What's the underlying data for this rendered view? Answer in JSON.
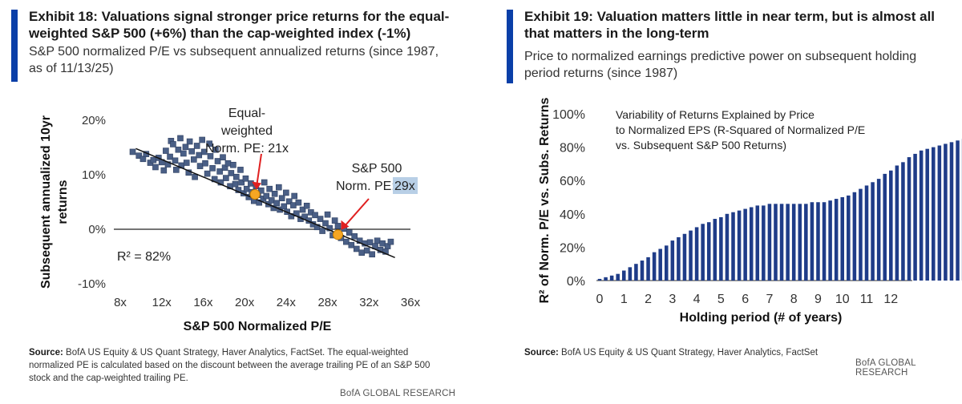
{
  "exhibit18": {
    "title": "Exhibit 18: Valuations signal stronger price returns for the equal-weighted S&P 500 (+6%) than the cap-weighted index (-1%)",
    "subtitle": "S&P 500 normalized P/E vs subsequent annualized returns (since 1987, as of 11/13/25)",
    "source_label": "Source:",
    "source_text": "BofA US Equity & US Quant Strategy, Haver Analytics, FactSet. The equal-weighted normalized PE is calculated based on the discount between the average trailing PE of an S&P 500 stock and the cap-weighted trailing PE.",
    "brand": "BofA GLOBAL RESEARCH",
    "colors": {
      "accent": "#0a3fa8",
      "marker": "#4a5f86",
      "marker_edge": "#2e3f60",
      "highlight": "#f5a623",
      "arrow": "#e02020",
      "label_highlight": "#b8cfe6"
    }
  },
  "exhibit19": {
    "title": "Exhibit 19: Valuation matters little in near term, but is almost all that matters in the long-term",
    "subtitle": "Price to normalized earnings predictive power on subsequent holding period returns (since 1987)",
    "source_label": "Source:",
    "source_text": "BofA US Equity & US Quant Strategy, Haver Analytics, FactSet",
    "brand": "BofA GLOBAL RESEARCH",
    "colors": {
      "accent": "#0a3fa8",
      "bar": "#1f3c88"
    }
  },
  "chart_data": [
    {
      "type": "scatter",
      "xlabel": "S&P 500 Normalized P/E",
      "ylabel": "Subsequent annualized 10yr returns",
      "xlim": [
        8,
        36
      ],
      "ylim": [
        -10,
        20
      ],
      "xticks": [
        8,
        12,
        16,
        20,
        24,
        28,
        32,
        36
      ],
      "xtick_labels": [
        "8x",
        "12x",
        "16x",
        "20x",
        "24x",
        "28x",
        "32x",
        "36x"
      ],
      "yticks": [
        -10,
        0,
        10,
        20
      ],
      "ytick_labels": [
        "-10%",
        "0%",
        "10%",
        "20%"
      ],
      "grid": false,
      "zero_line": true,
      "trendline": [
        [
          9.5,
          14.8
        ],
        [
          34.5,
          -5.2
        ]
      ],
      "r2_label": "R² = 82%",
      "highlights": [
        {
          "name": "Equal-weighted",
          "x": 21,
          "y": 6.4,
          "label_lines": [
            "Equal-",
            "weighted",
            "Norm. PE: 21x"
          ]
        },
        {
          "name": "S&P 500",
          "x": 29,
          "y": -1,
          "label_lines": [
            "S&P 500",
            "Norm. PE: "
          ],
          "label_highlight_text": "29x"
        }
      ],
      "points": [
        [
          9.2,
          14.2
        ],
        [
          9.8,
          13.5
        ],
        [
          10.2,
          12.9
        ],
        [
          10.5,
          13.8
        ],
        [
          10.9,
          12.2
        ],
        [
          11.2,
          12.7
        ],
        [
          11.4,
          11.4
        ],
        [
          11.7,
          13.1
        ],
        [
          12.0,
          12.3
        ],
        [
          12.2,
          10.8
        ],
        [
          12.4,
          14.4
        ],
        [
          12.6,
          11.9
        ],
        [
          12.8,
          13.3
        ],
        [
          12.9,
          16.2
        ],
        [
          13.1,
          15.6
        ],
        [
          13.3,
          12.6
        ],
        [
          13.4,
          10.9
        ],
        [
          13.6,
          14.6
        ],
        [
          13.8,
          16.7
        ],
        [
          13.9,
          11.7
        ],
        [
          14.1,
          13.9
        ],
        [
          14.3,
          15.1
        ],
        [
          14.4,
          12.2
        ],
        [
          14.6,
          10.4
        ],
        [
          14.7,
          16.1
        ],
        [
          14.9,
          14.3
        ],
        [
          15.1,
          12.8
        ],
        [
          15.2,
          9.6
        ],
        [
          15.4,
          15.3
        ],
        [
          15.6,
          13.6
        ],
        [
          15.7,
          11.6
        ],
        [
          15.9,
          16.4
        ],
        [
          16.1,
          14.2
        ],
        [
          16.2,
          12.1
        ],
        [
          16.4,
          10.2
        ],
        [
          16.6,
          15.7
        ],
        [
          16.7,
          13.4
        ],
        [
          16.9,
          11.2
        ],
        [
          17.1,
          9.2
        ],
        [
          17.2,
          14.6
        ],
        [
          17.4,
          12.5
        ],
        [
          17.6,
          10.6
        ],
        [
          17.7,
          8.6
        ],
        [
          17.9,
          13.2
        ],
        [
          18.1,
          11.3
        ],
        [
          18.2,
          9.4
        ],
        [
          18.4,
          12.1
        ],
        [
          18.6,
          7.9
        ],
        [
          18.7,
          10.3
        ],
        [
          18.9,
          11.8
        ],
        [
          19.1,
          8.3
        ],
        [
          19.2,
          9.6
        ],
        [
          19.4,
          7.2
        ],
        [
          19.6,
          10.9
        ],
        [
          19.7,
          8.6
        ],
        [
          19.9,
          6.6
        ],
        [
          20.1,
          9.3
        ],
        [
          20.2,
          7.4
        ],
        [
          20.4,
          5.9
        ],
        [
          20.6,
          8.4
        ],
        [
          20.7,
          6.8
        ],
        [
          20.9,
          5.2
        ],
        [
          21.1,
          7.9
        ],
        [
          21.3,
          6.3
        ],
        [
          21.4,
          4.9
        ],
        [
          21.6,
          7.1
        ],
        [
          21.8,
          5.6
        ],
        [
          21.9,
          8.6
        ],
        [
          22.1,
          6.1
        ],
        [
          22.3,
          4.6
        ],
        [
          22.4,
          7.4
        ],
        [
          22.6,
          5.3
        ],
        [
          22.8,
          3.9
        ],
        [
          22.9,
          6.5
        ],
        [
          23.1,
          4.8
        ],
        [
          23.3,
          7.7
        ],
        [
          23.4,
          3.6
        ],
        [
          23.6,
          5.7
        ],
        [
          23.8,
          4.2
        ],
        [
          24.0,
          6.7
        ],
        [
          24.1,
          3.2
        ],
        [
          24.3,
          5.1
        ],
        [
          24.5,
          2.4
        ],
        [
          24.7,
          4.4
        ],
        [
          24.8,
          6.1
        ],
        [
          25.0,
          2.9
        ],
        [
          25.2,
          4.9
        ],
        [
          25.4,
          1.9
        ],
        [
          25.6,
          3.6
        ],
        [
          25.8,
          2.3
        ],
        [
          26.0,
          4.3
        ],
        [
          26.2,
          1.6
        ],
        [
          26.4,
          3.1
        ],
        [
          26.6,
          0.9
        ],
        [
          26.8,
          2.6
        ],
        [
          27.0,
          0.4
        ],
        [
          27.3,
          1.9
        ],
        [
          27.5,
          -0.3
        ],
        [
          27.8,
          1.1
        ],
        [
          28.0,
          2.7
        ],
        [
          28.2,
          0.2
        ],
        [
          28.5,
          -1.1
        ],
        [
          28.7,
          1.6
        ],
        [
          29.0,
          0.6
        ],
        [
          29.3,
          -1.6
        ],
        [
          29.6,
          0.1
        ],
        [
          29.8,
          -2.3
        ],
        [
          30.1,
          -0.6
        ],
        [
          30.3,
          -2.9
        ],
        [
          30.6,
          -1.3
        ],
        [
          30.8,
          -3.6
        ],
        [
          31.1,
          -2.1
        ],
        [
          31.3,
          -4.3
        ],
        [
          31.6,
          -2.6
        ],
        [
          31.8,
          -3.9
        ],
        [
          32.1,
          -2.4
        ],
        [
          32.3,
          -4.6
        ],
        [
          32.6,
          -3.1
        ],
        [
          32.8,
          -2.1
        ],
        [
          33.1,
          -3.8
        ],
        [
          33.3,
          -2.6
        ],
        [
          33.6,
          -4.1
        ],
        [
          33.8,
          -3.1
        ],
        [
          34.1,
          -2.3
        ]
      ]
    },
    {
      "type": "bar",
      "annotation": "Variability of Returns Explained by Price to Normalized EPS (R-Squared of Normalized P/E vs. Subsequent S&P 500 Returns)",
      "xlabel": "Holding period (# of years)",
      "ylabel": "R² of Norm. P/E vs. Subs. Returns",
      "ylim": [
        0,
        100
      ],
      "yticks": [
        0,
        20,
        40,
        60,
        80,
        100
      ],
      "ytick_labels": [
        "0%",
        "20%",
        "40%",
        "60%",
        "80%",
        "100%"
      ],
      "xticks": [
        0,
        1,
        2,
        3,
        4,
        5,
        6,
        7,
        8,
        9,
        10,
        11,
        12
      ],
      "xtick_labels": [
        "0",
        "1",
        "2",
        "3",
        "4",
        "5",
        "6",
        "7",
        "8",
        "9",
        "10",
        "11",
        "12"
      ],
      "x_step_years": 0.25,
      "values": [
        1,
        2,
        3,
        4,
        6,
        8,
        10,
        12,
        14,
        17,
        19,
        21,
        24,
        26,
        28,
        30,
        32,
        34,
        35,
        37,
        38,
        40,
        41,
        42,
        43,
        44,
        45,
        45,
        46,
        46,
        46,
        46,
        46,
        46,
        46,
        47,
        47,
        47,
        48,
        49,
        50,
        51,
        53,
        55,
        57,
        59,
        61,
        64,
        66,
        69,
        71,
        74,
        76,
        78,
        79,
        80,
        81,
        82,
        83,
        84,
        85,
        85,
        85,
        85,
        85,
        85,
        85,
        84
      ]
    }
  ]
}
